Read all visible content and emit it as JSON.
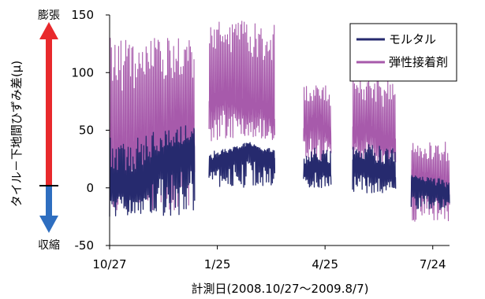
{
  "chart_data": {
    "type": "line",
    "ylabel": "タイル－下地間ひずみ差(μ)",
    "xlabel": "計測日(2008.10/27～2009.8/7)",
    "ylim": [
      -50,
      150
    ],
    "yticks": [
      -50,
      0,
      50,
      100,
      150
    ],
    "xlim": [
      "2008-10-27",
      "2009-08-07"
    ],
    "xticks": [
      {
        "date": "2008-10-27",
        "label": "10/27"
      },
      {
        "date": "2009-01-25",
        "label": "1/25"
      },
      {
        "date": "2009-04-25",
        "label": "4/25"
      },
      {
        "date": "2009-07-24",
        "label": "7/24"
      }
    ],
    "grid": false,
    "legend_position": "top-right",
    "indicator": {
      "top_label": "膨張",
      "bottom_label": "収縮",
      "top_color": "#e8292c",
      "bottom_color": "#2e6ec0"
    },
    "series": [
      {
        "name": "モルタル",
        "color": "#262a6e",
        "segments": [
          {
            "start": "2008-10-27",
            "end": "2009-01-06",
            "base": [
              5,
              0,
              5,
              25,
              30,
              35
            ],
            "low": -25,
            "high": 70
          },
          {
            "start": "2009-01-18",
            "end": "2009-03-14",
            "base": [
              20,
              25,
              30,
              35,
              30,
              25
            ],
            "low": 0,
            "high": 40
          },
          {
            "start": "2009-04-07",
            "end": "2009-04-30",
            "base": [
              15,
              20,
              15
            ],
            "low": 0,
            "high": 45
          },
          {
            "start": "2009-05-18",
            "end": "2009-06-23",
            "base": [
              20,
              20,
              15,
              10
            ],
            "low": -5,
            "high": 50
          },
          {
            "start": "2009-07-06",
            "end": "2009-08-07",
            "base": [
              5,
              0,
              -5
            ],
            "low": -20,
            "high": 15
          }
        ]
      },
      {
        "name": "弾性接着剤",
        "color": "#a75aab",
        "segments": [
          {
            "start": "2008-10-27",
            "end": "2009-01-06",
            "base": [
              20,
              30,
              35,
              45,
              55,
              50
            ],
            "low": -20,
            "high": 130
          },
          {
            "start": "2009-01-18",
            "end": "2009-03-14",
            "base": [
              70,
              80,
              75,
              65,
              70,
              60
            ],
            "low": 40,
            "high": 145
          },
          {
            "start": "2009-04-07",
            "end": "2009-04-30",
            "base": [
              50,
              60,
              45
            ],
            "low": 20,
            "high": 90
          },
          {
            "start": "2009-05-18",
            "end": "2009-06-23",
            "base": [
              45,
              50,
              40,
              35
            ],
            "low": 20,
            "high": 95
          },
          {
            "start": "2009-07-06",
            "end": "2009-08-07",
            "base": [
              10,
              5,
              0
            ],
            "low": -30,
            "high": 40
          }
        ]
      }
    ]
  }
}
